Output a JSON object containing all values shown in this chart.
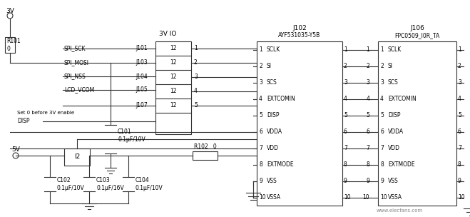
{
  "title": "",
  "bg_color": "#ffffff",
  "figsize": [
    6.59,
    3.04
  ],
  "dpi": 100,
  "signals_left": [
    "SPI_SCK",
    "SPI_MOSI",
    "SPI_NSS",
    "LCD_VCOM"
  ],
  "connectors_left": [
    "J101",
    "J103",
    "J104",
    "J105",
    "J107"
  ],
  "j102_signals": [
    "SCLK",
    "SI",
    "SCS",
    "EXTCOMIN",
    "DISP",
    "VDDA",
    "VDD",
    "EXTMODE",
    "VSS",
    "VSSA"
  ],
  "j106_signals": [
    "SCLK",
    "SI",
    "SCS",
    "EXTCOMIN",
    "DISP",
    "VDDA",
    "VDD",
    "EXTMODE",
    "VSS",
    "VSSA"
  ],
  "voltage_3v": "3V",
  "voltage_5v": "5V",
  "io_label": "3V IO",
  "j102_label": "J102",
  "j102_ic": "AYF531035-Y5B",
  "j106_label": "J106",
  "j106_ic": "FPC0509_I0R_TA",
  "r101_label": "R101\n0",
  "r102_label": "R102   0",
  "j108_label": "I2",
  "c101_label": "C101\n0.1μF/10V",
  "c102_label": "C102\n0.1μF/10V",
  "c103_label": "C103\n0.1μF/16V",
  "c104_label": "C104\n0.1μF/10V",
  "disp_label": "DISP",
  "set0_label": "Set 0 before 3V enable",
  "watermark": "www.elecfans.com"
}
